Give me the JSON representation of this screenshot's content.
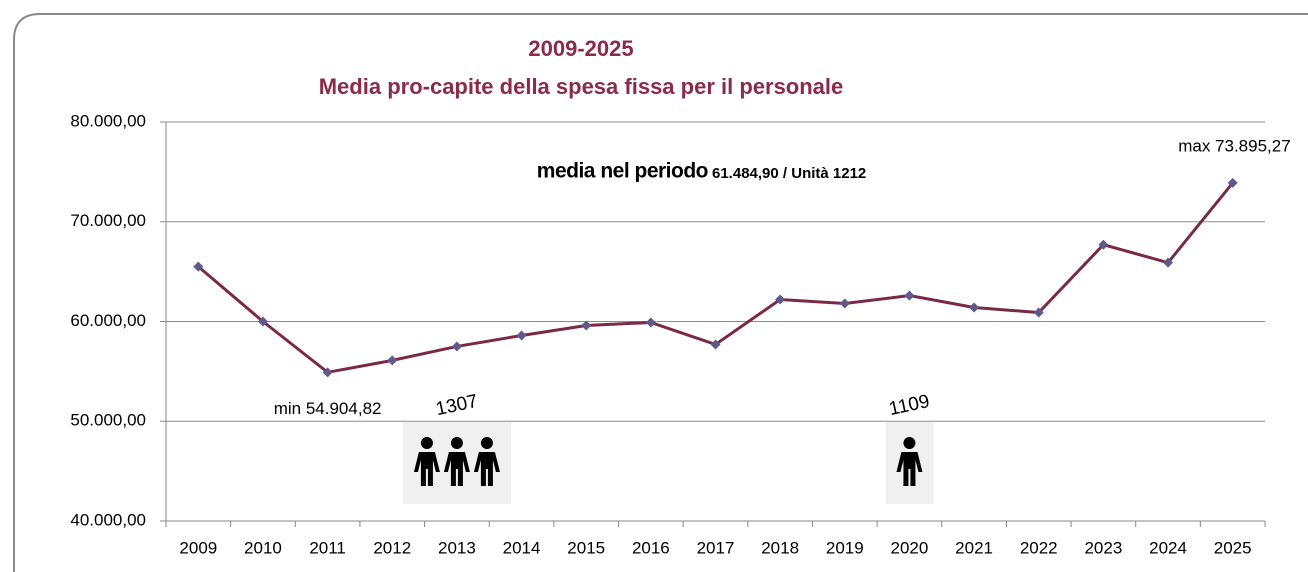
{
  "chart_data": {
    "type": "line",
    "title": "2009-2025",
    "subtitle": "Media pro-capite della spesa fissa per il personale",
    "annotations": [
      "media nel periodo",
      "61.484,90 / Unità  1212"
    ],
    "headcounts": [
      {
        "label": "1307",
        "icons": 3
      },
      {
        "label": "1109",
        "icons": 1
      }
    ],
    "categories": [
      "2009",
      "2010",
      "2011",
      "2012",
      "2013",
      "2014",
      "2015",
      "2016",
      "2017",
      "2018",
      "2019",
      "2020",
      "2021",
      "2022",
      "2023",
      "2024",
      "2025"
    ],
    "values": [
      65500,
      60000,
      54904.82,
      56100,
      57500,
      58600,
      59600,
      59900,
      57700,
      62200,
      61800,
      62600,
      61400,
      60900,
      67700,
      65900,
      73895.27
    ],
    "value_labels": [
      null,
      null,
      "min 54.904,82",
      null,
      null,
      null,
      null,
      null,
      null,
      null,
      null,
      null,
      null,
      null,
      null,
      null,
      "max 73.895,27"
    ],
    "color": "#7b2a45",
    "marker_color": "#5e5a8c",
    "ylim": [
      40000,
      80000
    ],
    "yticks": [
      {
        "value": 40000,
        "label": "40.000,00"
      },
      {
        "value": 50000,
        "label": "50.000,00"
      },
      {
        "value": 60000,
        "label": "60.000,00"
      },
      {
        "value": 70000,
        "label": "70.000,00"
      },
      {
        "value": 80000,
        "label": "80.000,00"
      }
    ],
    "grid": true
  }
}
